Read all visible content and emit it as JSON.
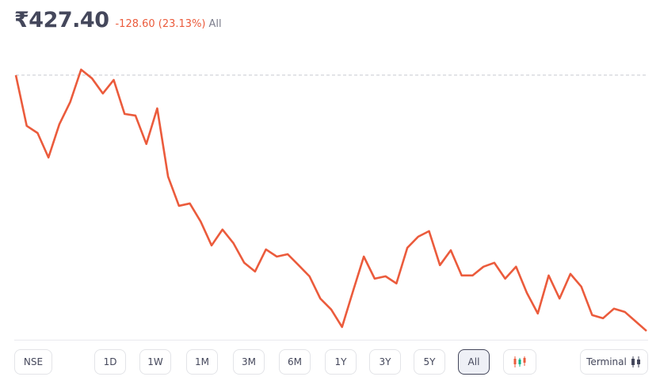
{
  "header": {
    "price": "₹427.40",
    "change": "-128.60 (23.13%)",
    "period": "All"
  },
  "chart_data": {
    "type": "line",
    "color": "#eb5b3c",
    "baseline": 556,
    "ylim": [
      422.6,
      569.9
    ],
    "values": [
      556,
      530.5,
      526.9,
      514.6,
      531.3,
      542.5,
      558.8,
      554.4,
      546.8,
      553.6,
      536.5,
      535.7,
      521.4,
      539.3,
      505.0,
      490.3,
      491.5,
      482.4,
      470.4,
      478.4,
      471.6,
      461.7,
      457.3,
      468.4,
      464.8,
      466.0,
      460.5,
      454.9,
      443.7,
      438.2,
      429.4,
      447.3,
      464.8,
      453.7,
      454.9,
      451.3,
      469.2,
      474.8,
      477.6,
      460.5,
      468.0,
      455.3,
      455.3,
      459.7,
      461.7,
      453.7,
      459.7,
      446.5,
      436.2,
      455.3,
      443.7,
      456.1,
      449.7,
      435.4,
      433.8,
      438.6,
      437.0,
      432.2,
      427.4
    ]
  },
  "controls": {
    "exchange": "NSE",
    "ranges": [
      "1D",
      "1W",
      "1M",
      "3M",
      "6M",
      "1Y",
      "3Y",
      "5Y",
      "All"
    ],
    "selected": "All",
    "terminal": "Terminal"
  }
}
